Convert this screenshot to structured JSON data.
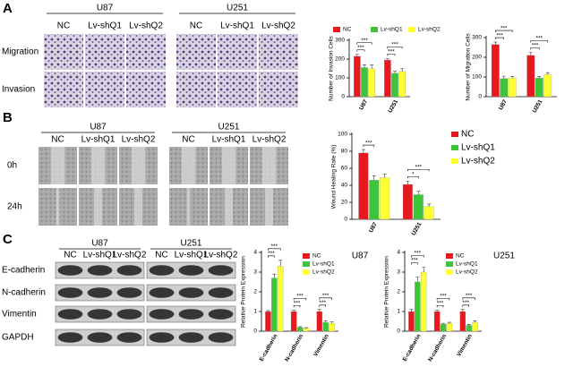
{
  "panel_labels": [
    "A",
    "B",
    "C"
  ],
  "panel_a": {
    "groups": [
      {
        "name": "U87",
        "columns": [
          "NC",
          "Lv-shQ1",
          "Lv-shQ2"
        ]
      },
      {
        "name": "U251",
        "columns": [
          "NC",
          "Lv-shQ1",
          "Lv-shQ2"
        ]
      }
    ],
    "rows": [
      "Migration",
      "Invasion"
    ]
  },
  "panel_b": {
    "groups": [
      {
        "name": "U87",
        "columns": [
          "NC",
          "Lv-shQ1",
          "Lv-shQ2"
        ]
      },
      {
        "name": "U251",
        "columns": [
          "NC",
          "Lv-shQ1",
          "Lv-shQ2"
        ]
      }
    ],
    "rows": [
      "0h",
      "24h"
    ]
  },
  "panel_c": {
    "groups": [
      {
        "name": "U87",
        "columns": [
          "NC",
          "Lv-shQ1",
          "Lv-shQ2"
        ]
      },
      {
        "name": "U251",
        "columns": [
          "NC",
          "Lv-shQ1",
          "Lv-shQ2"
        ]
      }
    ],
    "rows": [
      "E-cadherin",
      "N-cadherin",
      "Vimentin",
      "GAPDH"
    ]
  },
  "chart_data": [
    {
      "type": "bar",
      "y_label": "Number of Invasion Cells",
      "categories": [
        "U87",
        "U251"
      ],
      "legend": "top",
      "series": [
        {
          "name": "NC",
          "color": "#e8191e",
          "values": [
            215,
            195
          ],
          "errors": [
            10,
            8
          ]
        },
        {
          "name": "Lv-shQ1",
          "color": "#3ec43a",
          "values": [
            155,
            125
          ],
          "errors": [
            15,
            10
          ],
          "significance": [
            "***",
            "***"
          ]
        },
        {
          "name": "Lv-shQ2",
          "color": "#ffff33",
          "values": [
            148,
            135
          ],
          "errors": [
            20,
            15
          ],
          "significance": [
            "***",
            "***"
          ]
        }
      ],
      "ylim": [
        0,
        300
      ],
      "yticks": [
        0,
        100,
        200,
        300
      ]
    },
    {
      "type": "bar",
      "y_label": "Number of Migration Cells",
      "categories": [
        "U87",
        "U251"
      ],
      "legend": "none",
      "series": [
        {
          "color": "#e8191e",
          "values": [
            265,
            210
          ],
          "errors": [
            12,
            15
          ]
        },
        {
          "color": "#3ec43a",
          "values": [
            92,
            95
          ],
          "errors": [
            12,
            8
          ],
          "significance": [
            "***",
            "***"
          ]
        },
        {
          "color": "#ffff33",
          "values": [
            95,
            112
          ],
          "errors": [
            8,
            10
          ],
          "significance": [
            "***",
            "***"
          ]
        }
      ],
      "ylim": [
        0,
        300
      ],
      "yticks": [
        0,
        100,
        200,
        300
      ]
    },
    {
      "type": "bar",
      "y_label": "Wound Healing Rate (%)",
      "categories": [
        "U87",
        "U251"
      ],
      "legend": "right",
      "series": [
        {
          "name": "NC",
          "color": "#e8191e",
          "values": [
            78,
            41
          ],
          "errors": [
            4,
            4
          ]
        },
        {
          "name": "Lv-shQ1",
          "color": "#3ec43a",
          "values": [
            46,
            29
          ],
          "errors": [
            5,
            4
          ],
          "significance": [
            "***",
            "*"
          ]
        },
        {
          "name": "Lv-shQ2",
          "color": "#ffff33",
          "values": [
            49,
            15
          ],
          "errors": [
            4,
            3
          ],
          "significance": [
            null,
            "***"
          ]
        }
      ],
      "ylim": [
        0,
        100
      ],
      "yticks": [
        0,
        20,
        40,
        60,
        80,
        100
      ]
    },
    {
      "type": "bar",
      "title": "U87",
      "y_label": "Relative Protein Expression",
      "categories": [
        "E-cadherin",
        "N-cadherin",
        "Vimentin"
      ],
      "legend": "right",
      "series": [
        {
          "name": "NC",
          "color": "#e8191e",
          "values": [
            1,
            1,
            1
          ],
          "errors": [
            0.05,
            0.08,
            0.1
          ]
        },
        {
          "name": "Lv-shQ1",
          "color": "#3ec43a",
          "values": [
            2.7,
            0.2,
            0.45
          ],
          "errors": [
            0.2,
            0.03,
            0.08
          ],
          "significance": [
            "***",
            "***",
            "***"
          ]
        },
        {
          "name": "Lv-shQ2",
          "color": "#ffff33",
          "values": [
            3.3,
            0.15,
            0.4
          ],
          "errors": [
            0.3,
            0.03,
            0.07
          ],
          "significance": [
            "***",
            "***",
            "***"
          ]
        }
      ],
      "ylim": [
        0,
        4
      ],
      "yticks": [
        0,
        1,
        2,
        3,
        4
      ]
    },
    {
      "type": "bar",
      "title": "U251",
      "y_label": "Relative Protein Expression",
      "categories": [
        "E-cadherin",
        "N-cadherin",
        "Vimentin"
      ],
      "legend": "right",
      "series": [
        {
          "name": "NC",
          "color": "#e8191e",
          "values": [
            1,
            1,
            1
          ],
          "errors": [
            0.1,
            0.08,
            0.1
          ]
        },
        {
          "name": "Lv-shQ1",
          "color": "#3ec43a",
          "values": [
            2.5,
            0.35,
            0.3
          ],
          "errors": [
            0.25,
            0.05,
            0.05
          ],
          "significance": [
            "***",
            "***",
            "***"
          ]
        },
        {
          "name": "Lv-shQ2",
          "color": "#ffff33",
          "values": [
            3.0,
            0.4,
            0.45
          ],
          "errors": [
            0.25,
            0.05,
            0.08
          ],
          "significance": [
            "***",
            "***",
            "***"
          ]
        }
      ],
      "ylim": [
        0,
        4
      ],
      "yticks": [
        0,
        1,
        2,
        3,
        4
      ]
    }
  ]
}
